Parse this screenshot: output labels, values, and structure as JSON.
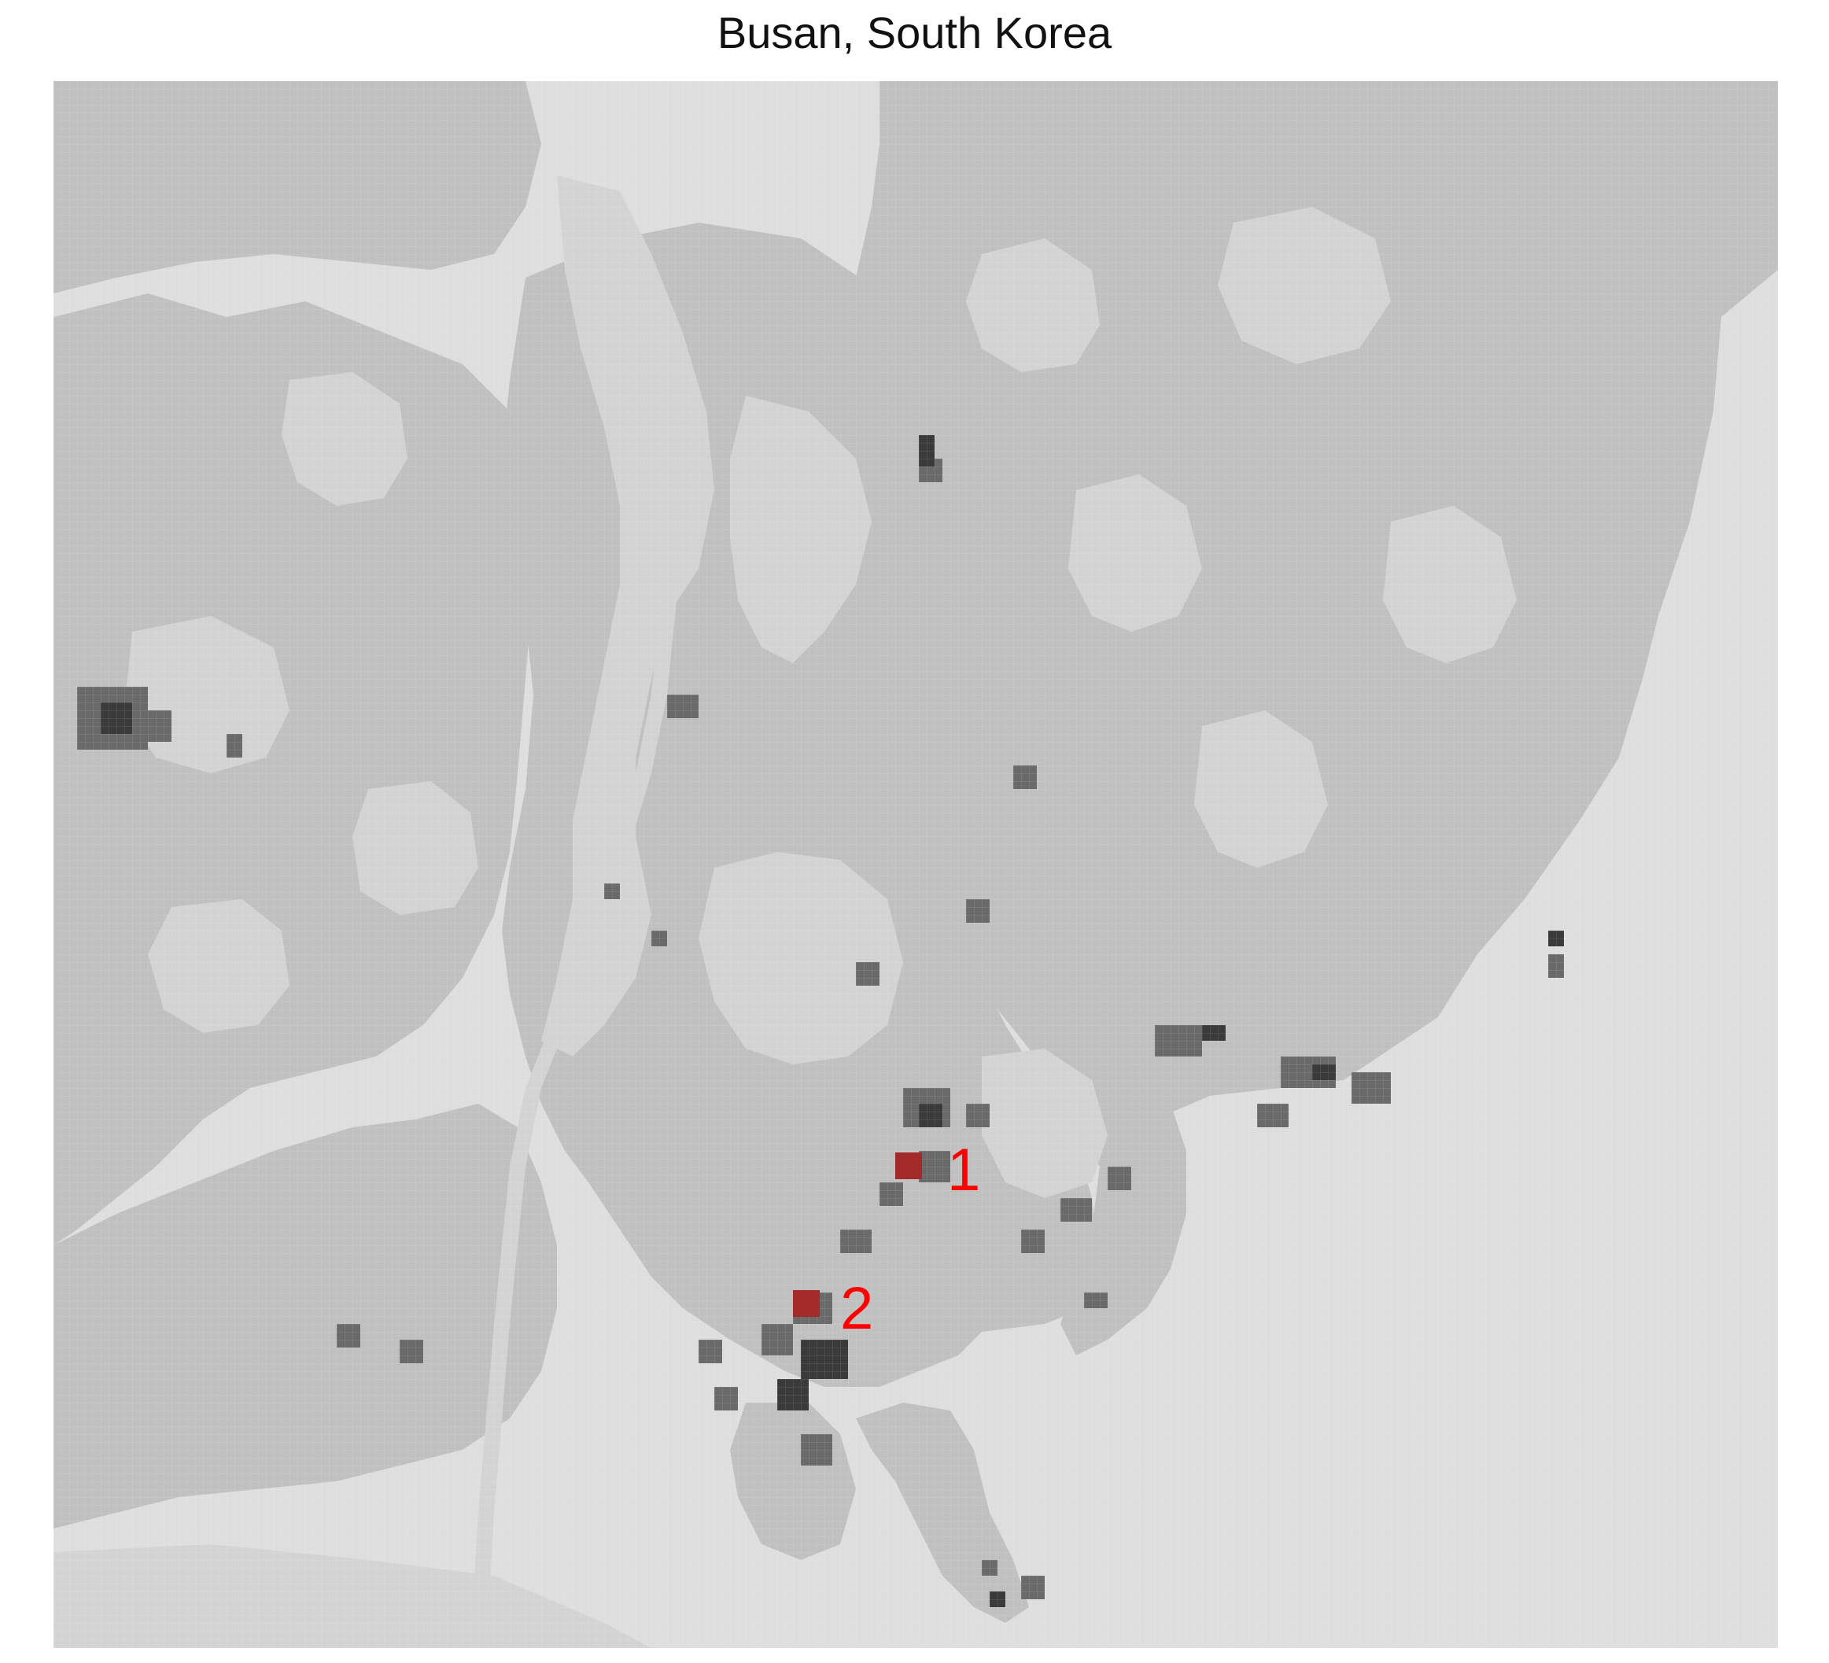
{
  "title": "Busan, South Korea",
  "colors": {
    "sea": "#dedede",
    "urban_low": "#d3d3d3",
    "mountain": "#c0c0c0",
    "urban_dark": "#6a6a6a",
    "urban_darkest": "#3a3a3a",
    "marker_fill": "#a32a2a",
    "marker_label": "#ff0000"
  },
  "markers": [
    {
      "label": "1"
    },
    {
      "label": "2"
    }
  ]
}
